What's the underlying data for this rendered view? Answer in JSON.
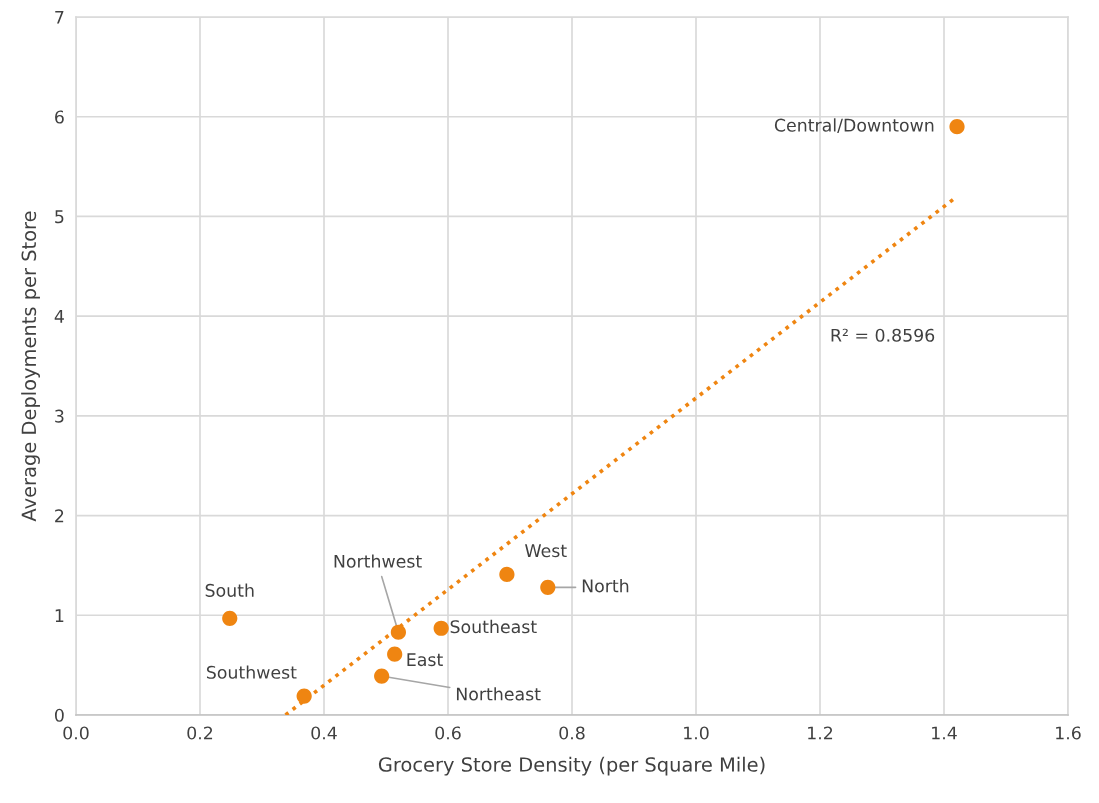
{
  "chart_data": {
    "type": "scatter",
    "xlabel": "Grocery Store Density (per Square Mile)",
    "ylabel": "Average Deployments per Store",
    "xlim": [
      0,
      1.6
    ],
    "xticks": [
      {
        "value": 0,
        "label": "0.0"
      },
      {
        "value": 0.2,
        "label": "0.2"
      },
      {
        "value": 0.4,
        "label": "0.4"
      },
      {
        "value": 0.6,
        "label": "0.6"
      },
      {
        "value": 0.8,
        "label": "0.8"
      },
      {
        "value": 1.0,
        "label": "1.0"
      },
      {
        "value": 1.2,
        "label": "1.2"
      },
      {
        "value": 1.4,
        "label": "1.4"
      },
      {
        "value": 1.6,
        "label": "1.6"
      }
    ],
    "ylim": [
      0,
      7
    ],
    "yticks": [
      0,
      1,
      2,
      3,
      4,
      5,
      6,
      7
    ],
    "grid": true,
    "series": [
      {
        "color": "#ef8511",
        "marker": "circle",
        "x": [
          1.421,
          0.248,
          0.368,
          0.493,
          0.514,
          0.52,
          0.589,
          0.695,
          0.761
        ],
        "values": [
          5.9,
          0.97,
          0.19,
          0.39,
          0.61,
          0.83,
          0.87,
          1.41,
          1.28
        ]
      },
      {
        "type": "line",
        "color": "#ef8511",
        "marker": "none",
        "line_style": "dotted",
        "x": [
          0.338,
          1.421
        ],
        "values": [
          0,
          5.2
        ]
      }
    ],
    "annotations": [
      {
        "text": "Central/Downtown",
        "x": 1.421,
        "y": 5.9
      },
      {
        "text": "South",
        "x": 0.248,
        "y": 0.97
      },
      {
        "text": "Southwest",
        "x": 0.368,
        "y": 0.19
      },
      {
        "text": "Northeast",
        "x": 0.493,
        "y": 0.39
      },
      {
        "text": "East",
        "x": 0.514,
        "y": 0.61
      },
      {
        "text": "Northwest",
        "x": 0.52,
        "y": 0.83
      },
      {
        "text": "Southeast",
        "x": 0.589,
        "y": 0.87
      },
      {
        "text": "West",
        "x": 0.695,
        "y": 1.41
      },
      {
        "text": "North",
        "x": 0.761,
        "y": 1.28
      },
      "R² = 0.8596"
    ]
  }
}
